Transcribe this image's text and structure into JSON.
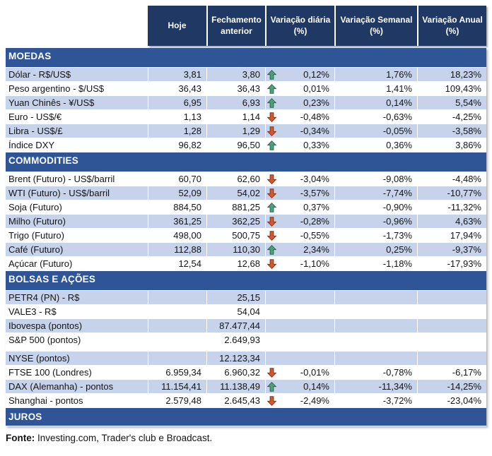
{
  "colors": {
    "header_bg": "#1F3864",
    "section_bg": "#2F5597",
    "band_bg": "#C6D3EA",
    "arrow_up_fill": "#4E9F7B",
    "arrow_up_stroke": "#2C6B51",
    "arrow_down_fill": "#D05A30",
    "arrow_down_stroke": "#8C331E"
  },
  "header": {
    "cols": [
      "Hoje",
      "Fechamento anterior",
      "Variação diária (%)",
      "Variação Semanal (%)",
      "Variação Anual (%)"
    ]
  },
  "sections": [
    {
      "title": "MOEDAS",
      "rows": [
        {
          "label": "Dólar - R$/US$",
          "hoje": "3,81",
          "fechamento": "3,80",
          "trend": "up",
          "var_diaria": "0,12%",
          "var_semanal": "1,76%",
          "var_anual": "18,23%",
          "shaded": true
        },
        {
          "label": "Peso argentino - $/US$",
          "hoje": "36,43",
          "fechamento": "36,43",
          "trend": "up",
          "var_diaria": "0,01%",
          "var_semanal": "1,41%",
          "var_anual": "109,43%",
          "shaded": false
        },
        {
          "label": "Yuan Chinês - ¥/US$",
          "hoje": "6,95",
          "fechamento": "6,93",
          "trend": "up",
          "var_diaria": "0,23%",
          "var_semanal": "0,14%",
          "var_anual": "5,54%",
          "shaded": true
        },
        {
          "label": "Euro - US$/€",
          "hoje": "1,13",
          "fechamento": "1,14",
          "trend": "down",
          "var_diaria": "-0,48%",
          "var_semanal": "-0,63%",
          "var_anual": "-4,25%",
          "shaded": false
        },
        {
          "label": "Libra - US$/£",
          "hoje": "1,28",
          "fechamento": "1,29",
          "trend": "down",
          "var_diaria": "-0,34%",
          "var_semanal": "-0,05%",
          "var_anual": "-3,58%",
          "shaded": true
        },
        {
          "label": "Índice DXY",
          "hoje": "96,82",
          "fechamento": "96,50",
          "trend": "up",
          "var_diaria": "0,33%",
          "var_semanal": "0,36%",
          "var_anual": "3,86%",
          "shaded": false
        }
      ]
    },
    {
      "title": "COMMODITIES",
      "rows": [
        {
          "label": "Brent (Futuro) - US$/barril",
          "hoje": "60,70",
          "fechamento": "62,60",
          "trend": "down",
          "var_diaria": "-3,04%",
          "var_semanal": "-9,08%",
          "var_anual": "-4,48%",
          "shaded": false
        },
        {
          "label": "WTI (Futuro) - US$/barril",
          "hoje": "52,09",
          "fechamento": "54,02",
          "trend": "down",
          "var_diaria": "-3,57%",
          "var_semanal": "-7,74%",
          "var_anual": "-10,77%",
          "shaded": true
        },
        {
          "label": "Soja (Futuro)",
          "hoje": "884,50",
          "fechamento": "881,25",
          "trend": "up",
          "var_diaria": "0,37%",
          "var_semanal": "-0,90%",
          "var_anual": "-11,32%",
          "shaded": false
        },
        {
          "label": "Milho (Futuro)",
          "hoje": "361,25",
          "fechamento": "362,25",
          "trend": "down",
          "var_diaria": "-0,28%",
          "var_semanal": "-0,96%",
          "var_anual": "4,63%",
          "shaded": true
        },
        {
          "label": "Trigo (Futuro)",
          "hoje": "498,00",
          "fechamento": "500,75",
          "trend": "down",
          "var_diaria": "-0,55%",
          "var_semanal": "-1,73%",
          "var_anual": "17,94%",
          "shaded": false
        },
        {
          "label": "Café (Futuro)",
          "hoje": "112,88",
          "fechamento": "110,30",
          "trend": "up",
          "var_diaria": "2,34%",
          "var_semanal": "0,25%",
          "var_anual": "-9,37%",
          "shaded": true
        },
        {
          "label": "Açúcar (Futuro)",
          "hoje": "12,54",
          "fechamento": "12,68",
          "trend": "down",
          "var_diaria": "-1,10%",
          "var_semanal": "-1,18%",
          "var_anual": "-17,93%",
          "shaded": false
        }
      ]
    },
    {
      "title": "BOLSAS E AÇÕES",
      "rows": [
        {
          "label": "PETR4 (PN) - R$",
          "hoje": "",
          "fechamento": "25,15",
          "trend": "none",
          "var_diaria": "",
          "var_semanal": "",
          "var_anual": "",
          "shaded": true
        },
        {
          "label": "VALE3 - R$",
          "hoje": "",
          "fechamento": "54,04",
          "trend": "none",
          "var_diaria": "",
          "var_semanal": "",
          "var_anual": "",
          "shaded": false
        },
        {
          "label": "Ibovespa (pontos)",
          "hoje": "",
          "fechamento": "87.477,44",
          "trend": "none",
          "var_diaria": "",
          "var_semanal": "",
          "var_anual": "",
          "shaded": true
        },
        {
          "label": "S&P 500 (pontos)",
          "hoje": "",
          "fechamento": "2.649,93",
          "trend": "none",
          "var_diaria": "",
          "var_semanal": "",
          "var_anual": "",
          "shaded": false
        },
        {
          "label": "NYSE (pontos)",
          "hoje": "",
          "fechamento": "12.123,34",
          "trend": "none",
          "var_diaria": "",
          "var_semanal": "",
          "var_anual": "",
          "shaded": true,
          "gap_before": true
        },
        {
          "label": "FTSE 100 (Londres)",
          "hoje": "6.959,34",
          "fechamento": "6.960,32",
          "trend": "down",
          "var_diaria": "-0,01%",
          "var_semanal": "-0,78%",
          "var_anual": "-6,17%",
          "shaded": false
        },
        {
          "label": "DAX (Alemanha) - pontos",
          "hoje": "11.154,41",
          "fechamento": "11.138,49",
          "trend": "up",
          "var_diaria": "0,14%",
          "var_semanal": "-11,34%",
          "var_anual": "-14,25%",
          "shaded": true
        },
        {
          "label": "Shanghai - pontos",
          "hoje": "2.579,48",
          "fechamento": "2.645,43",
          "trend": "down",
          "var_diaria": "-2,49%",
          "var_semanal": "-3,72%",
          "var_anual": "-23,04%",
          "shaded": false
        }
      ]
    },
    {
      "title": "JUROS",
      "rows": []
    }
  ],
  "footer": {
    "label_bold": "Fonte:",
    "text": " Investing.com, Trader's club e Broadcast."
  }
}
